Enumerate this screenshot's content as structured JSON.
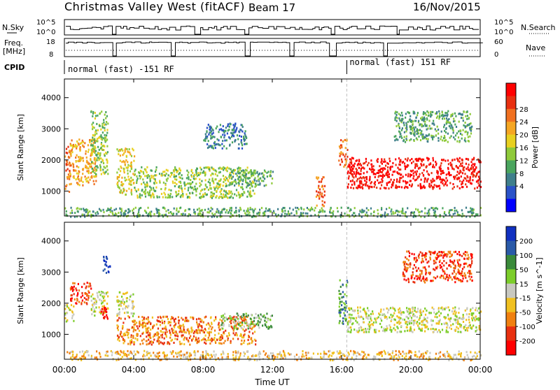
{
  "header": {
    "title": "Christmas Valley West (fitACF)",
    "beam": "Beam 17",
    "date": "16/Nov/2015"
  },
  "top_panels": {
    "nsky_label": "N.Sky",
    "nsky_ticks": [
      "10^5",
      "10^0"
    ],
    "nsearch_label": "N.Search",
    "nsearch_ticks": [
      "10^5",
      "10^0"
    ],
    "freq_label_1": "Freq.",
    "freq_label_2": "[MHz]",
    "freq_ticks": [
      "18",
      "8"
    ],
    "nave_label": "Nave",
    "nave_ticks": [
      "60",
      "0"
    ],
    "cpid_label": "CPID",
    "cpid_segments": [
      {
        "label": "normal (fast) -151 RF",
        "start_hour": 0
      },
      {
        "label": "normal (fast) 151 RF",
        "start_hour": 16.3
      }
    ]
  },
  "chart_data": [
    {
      "type": "heatmap",
      "title": "",
      "xlabel": "Time UT",
      "ylabel": "Slant Range [km]",
      "x_unit": "hour UT",
      "xlim": [
        0,
        24
      ],
      "ylim": [
        200,
        4600
      ],
      "x_tick_labels": [
        "00:00",
        "04:00",
        "08:00",
        "12:00",
        "16:00",
        "20:00",
        "00:00"
      ],
      "y_ticks": [
        1000,
        2000,
        3000,
        4000
      ],
      "colorbar": {
        "label": "Power [dB]",
        "ticks": [
          "4",
          "8",
          "12",
          "16",
          "20",
          "24",
          "28"
        ],
        "colors": [
          "#0000ff",
          "#2a52c8",
          "#3f7f8c",
          "#4aa55e",
          "#8fca3a",
          "#e8d020",
          "#f5a623",
          "#f07020",
          "#e83010",
          "#ff0000"
        ]
      },
      "features": [
        {
          "t0": 0.0,
          "t1": 0.3,
          "r0": 1000,
          "r1": 2600,
          "level": 7
        },
        {
          "t0": 0.3,
          "t1": 1.8,
          "r0": 1200,
          "r1": 2700,
          "level": 6
        },
        {
          "t0": 1.5,
          "t1": 2.5,
          "r0": 1500,
          "r1": 3600,
          "level": 4
        },
        {
          "t0": 3.0,
          "t1": 4.0,
          "r0": 900,
          "r1": 2400,
          "level": 5
        },
        {
          "t0": 4.0,
          "t1": 11.0,
          "r0": 800,
          "r1": 1800,
          "level": 4
        },
        {
          "t0": 8.0,
          "t1": 10.5,
          "r0": 2400,
          "r1": 3200,
          "level": 2
        },
        {
          "t0": 9.5,
          "t1": 12.0,
          "r0": 1200,
          "r1": 1700,
          "level": 3
        },
        {
          "t0": 14.5,
          "t1": 15.0,
          "r0": 500,
          "r1": 1500,
          "level": 7
        },
        {
          "t0": 15.8,
          "t1": 16.3,
          "r0": 1700,
          "r1": 2700,
          "level": 7
        },
        {
          "t0": 16.3,
          "t1": 24.0,
          "r0": 1100,
          "r1": 2100,
          "level": 9
        },
        {
          "t0": 19.0,
          "t1": 23.5,
          "r0": 2600,
          "r1": 3600,
          "level": 3
        },
        {
          "t0": 0.0,
          "t1": 24.0,
          "r0": 200,
          "r1": 500,
          "level": 3
        }
      ]
    },
    {
      "type": "heatmap",
      "title": "",
      "xlabel": "Time UT",
      "ylabel": "Slant Range [km]",
      "x_unit": "hour UT",
      "xlim": [
        0,
        24
      ],
      "ylim": [
        200,
        4600
      ],
      "x_tick_labels": [
        "00:00",
        "04:00",
        "08:00",
        "12:00",
        "16:00",
        "20:00",
        "00:00"
      ],
      "y_ticks": [
        1000,
        2000,
        3000,
        4000
      ],
      "colorbar": {
        "label": "Velocity [m s^-1]",
        "ticks": [
          "200",
          "100",
          "50",
          "15",
          "-15",
          "-50",
          "-100",
          "-200"
        ],
        "colors": [
          "#1030c0",
          "#2a5aa8",
          "#3a8a3a",
          "#7ccd2a",
          "#c8c8c0",
          "#f0c020",
          "#f08010",
          "#e83010",
          "#ff0000"
        ]
      },
      "features": [
        {
          "t0": 0.0,
          "t1": 0.5,
          "r0": 1400,
          "r1": 2000,
          "level": 4
        },
        {
          "t0": 0.3,
          "t1": 1.5,
          "r0": 2000,
          "r1": 2700,
          "level": 7
        },
        {
          "t0": 1.5,
          "t1": 2.5,
          "r0": 1600,
          "r1": 2400,
          "level": 4
        },
        {
          "t0": 2.2,
          "t1": 2.6,
          "r0": 3000,
          "r1": 3600,
          "level": 0
        },
        {
          "t0": 2.0,
          "t1": 2.5,
          "r0": 1500,
          "r1": 1900,
          "level": 8
        },
        {
          "t0": 3.0,
          "t1": 4.0,
          "r0": 1600,
          "r1": 2400,
          "level": 4
        },
        {
          "t0": 3.0,
          "t1": 11.0,
          "r0": 700,
          "r1": 1600,
          "level": 6
        },
        {
          "t0": 9.0,
          "t1": 12.0,
          "r0": 1200,
          "r1": 1700,
          "level": 3
        },
        {
          "t0": 15.8,
          "t1": 16.3,
          "r0": 1300,
          "r1": 2800,
          "level": 2
        },
        {
          "t0": 16.3,
          "t1": 24.0,
          "r0": 1100,
          "r1": 1900,
          "level": 4
        },
        {
          "t0": 19.5,
          "t1": 23.5,
          "r0": 2700,
          "r1": 3700,
          "level": 7
        },
        {
          "t0": 0.0,
          "t1": 24.0,
          "r0": 200,
          "r1": 500,
          "level": 5
        }
      ]
    }
  ],
  "colors": {
    "axis": "#000000",
    "dashed_marker": "#c0c0c0",
    "nodata": "#ffffff"
  }
}
